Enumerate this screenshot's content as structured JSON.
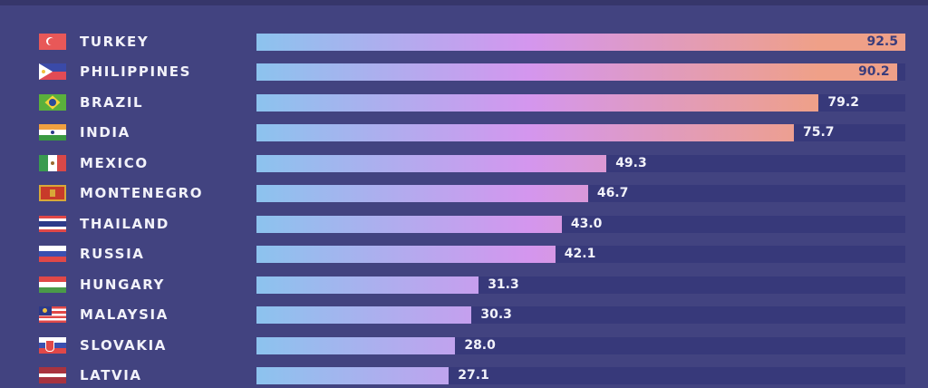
{
  "chart_data": {
    "type": "bar",
    "orientation": "horizontal",
    "categories": [
      "TURKEY",
      "PHILIPPINES",
      "BRAZIL",
      "INDIA",
      "MEXICO",
      "MONTENEGRO",
      "THAILAND",
      "RUSSIA",
      "HUNGARY",
      "MALAYSIA",
      "SLOVAKIA",
      "LATVIA"
    ],
    "values": [
      92.5,
      90.2,
      79.2,
      75.7,
      49.3,
      46.7,
      43.0,
      42.1,
      31.3,
      30.3,
      28.0,
      27.1
    ],
    "labels": [
      "92.5",
      "90.2",
      "79.2",
      "75.7",
      "49.3",
      "46.7",
      "43.0",
      "42.1",
      "31.3",
      "30.3",
      "28.0",
      "27.1"
    ],
    "flags": [
      "turkey-flag",
      "philippines-flag",
      "brazil-flag",
      "india-flag",
      "mexico-flag",
      "montenegro-flag",
      "thailand-flag",
      "russia-flag",
      "hungary-flag",
      "malaysia-flag",
      "slovakia-flag",
      "latvia-flag"
    ],
    "xlim": [
      0,
      91.4
    ]
  },
  "colors": {
    "background": "#424380",
    "track": "#37397a",
    "label_inside": "#3b3d7c",
    "label_outside": "#f2f2fa"
  }
}
